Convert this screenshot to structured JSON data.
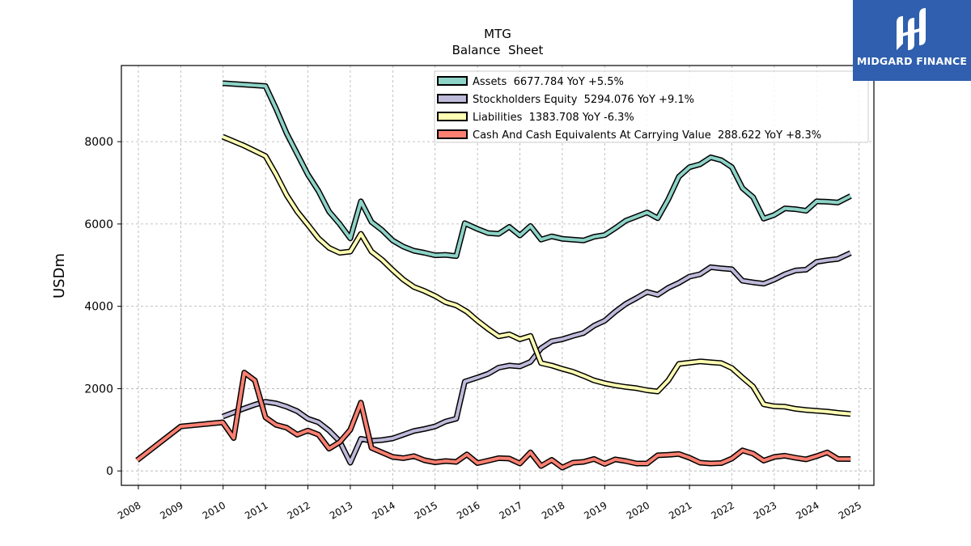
{
  "chart_data": {
    "type": "line",
    "title": "MTG",
    "subtitle": "Balance  Sheet",
    "ylabel": "USDm",
    "xlabel": "",
    "xlim": [
      2007.6,
      2025.35
    ],
    "ylim": [
      -350,
      9850
    ],
    "x_ticks": [
      2008,
      2009,
      2010,
      2011,
      2012,
      2013,
      2014,
      2015,
      2016,
      2017,
      2018,
      2019,
      2020,
      2021,
      2022,
      2023,
      2024,
      2025
    ],
    "y_ticks": [
      0,
      2000,
      4000,
      6000,
      8000
    ],
    "grid": true,
    "legend_position": "top-right",
    "series": [
      {
        "name": "Assets  6677.784 YoY +5.5%",
        "color": "#8dd3c7",
        "points": [
          [
            2009.99,
            9420
          ],
          [
            2011.0,
            9350
          ],
          [
            2011.25,
            8800
          ],
          [
            2011.5,
            8200
          ],
          [
            2011.75,
            7700
          ],
          [
            2012.0,
            7200
          ],
          [
            2012.25,
            6800
          ],
          [
            2012.5,
            6300
          ],
          [
            2012.75,
            6000
          ],
          [
            2013.0,
            5650
          ],
          [
            2013.25,
            6550
          ],
          [
            2013.5,
            6050
          ],
          [
            2013.75,
            5850
          ],
          [
            2014.0,
            5600
          ],
          [
            2014.25,
            5450
          ],
          [
            2014.5,
            5350
          ],
          [
            2014.75,
            5300
          ],
          [
            2015.0,
            5240
          ],
          [
            2015.25,
            5250
          ],
          [
            2015.5,
            5220
          ],
          [
            2015.7,
            6020
          ],
          [
            2016.0,
            5880
          ],
          [
            2016.25,
            5780
          ],
          [
            2016.5,
            5760
          ],
          [
            2016.75,
            5930
          ],
          [
            2017.0,
            5720
          ],
          [
            2017.25,
            5950
          ],
          [
            2017.5,
            5620
          ],
          [
            2017.75,
            5700
          ],
          [
            2018.0,
            5640
          ],
          [
            2018.25,
            5620
          ],
          [
            2018.5,
            5600
          ],
          [
            2018.75,
            5690
          ],
          [
            2019.0,
            5730
          ],
          [
            2019.25,
            5900
          ],
          [
            2019.5,
            6080
          ],
          [
            2019.75,
            6180
          ],
          [
            2020.0,
            6280
          ],
          [
            2020.25,
            6140
          ],
          [
            2020.5,
            6600
          ],
          [
            2020.75,
            7150
          ],
          [
            2021.0,
            7380
          ],
          [
            2021.25,
            7450
          ],
          [
            2021.5,
            7620
          ],
          [
            2021.75,
            7550
          ],
          [
            2022.0,
            7380
          ],
          [
            2022.25,
            6870
          ],
          [
            2022.5,
            6650
          ],
          [
            2022.75,
            6130
          ],
          [
            2023.0,
            6220
          ],
          [
            2023.25,
            6380
          ],
          [
            2023.5,
            6360
          ],
          [
            2023.75,
            6320
          ],
          [
            2024.0,
            6550
          ],
          [
            2024.25,
            6540
          ],
          [
            2024.5,
            6520
          ],
          [
            2024.8,
            6678
          ]
        ]
      },
      {
        "name": "Stockholders Equity  5294.076 YoY +9.1%",
        "color": "#bebada",
        "points": [
          [
            2009.99,
            1320
          ],
          [
            2010.25,
            1420
          ],
          [
            2010.5,
            1520
          ],
          [
            2010.75,
            1610
          ],
          [
            2011.0,
            1680
          ],
          [
            2011.25,
            1640
          ],
          [
            2011.5,
            1560
          ],
          [
            2011.75,
            1450
          ],
          [
            2012.0,
            1270
          ],
          [
            2012.25,
            1180
          ],
          [
            2012.5,
            980
          ],
          [
            2012.75,
            720
          ],
          [
            2013.0,
            200
          ],
          [
            2013.25,
            780
          ],
          [
            2013.5,
            730
          ],
          [
            2013.75,
            750
          ],
          [
            2014.0,
            790
          ],
          [
            2014.25,
            880
          ],
          [
            2014.5,
            970
          ],
          [
            2014.75,
            1020
          ],
          [
            2015.0,
            1080
          ],
          [
            2015.25,
            1200
          ],
          [
            2015.5,
            1270
          ],
          [
            2015.7,
            2170
          ],
          [
            2016.0,
            2270
          ],
          [
            2016.25,
            2360
          ],
          [
            2016.5,
            2510
          ],
          [
            2016.75,
            2560
          ],
          [
            2017.0,
            2540
          ],
          [
            2017.25,
            2650
          ],
          [
            2017.5,
            2980
          ],
          [
            2017.75,
            3150
          ],
          [
            2018.0,
            3200
          ],
          [
            2018.25,
            3280
          ],
          [
            2018.5,
            3350
          ],
          [
            2018.75,
            3530
          ],
          [
            2019.0,
            3650
          ],
          [
            2019.25,
            3870
          ],
          [
            2019.5,
            4060
          ],
          [
            2019.75,
            4200
          ],
          [
            2020.0,
            4350
          ],
          [
            2020.25,
            4280
          ],
          [
            2020.5,
            4450
          ],
          [
            2020.75,
            4570
          ],
          [
            2021.0,
            4720
          ],
          [
            2021.25,
            4780
          ],
          [
            2021.5,
            4950
          ],
          [
            2021.75,
            4920
          ],
          [
            2022.0,
            4900
          ],
          [
            2022.25,
            4620
          ],
          [
            2022.5,
            4580
          ],
          [
            2022.75,
            4550
          ],
          [
            2023.0,
            4650
          ],
          [
            2023.25,
            4780
          ],
          [
            2023.5,
            4870
          ],
          [
            2023.75,
            4890
          ],
          [
            2024.0,
            5080
          ],
          [
            2024.25,
            5120
          ],
          [
            2024.5,
            5150
          ],
          [
            2024.8,
            5294
          ]
        ]
      },
      {
        "name": "Liabilities  1383.708 YoY -6.3%",
        "color": "#ffffb3",
        "points": [
          [
            2009.99,
            8120
          ],
          [
            2010.5,
            7900
          ],
          [
            2011.0,
            7650
          ],
          [
            2011.25,
            7200
          ],
          [
            2011.5,
            6700
          ],
          [
            2011.75,
            6300
          ],
          [
            2012.0,
            5980
          ],
          [
            2012.25,
            5650
          ],
          [
            2012.5,
            5420
          ],
          [
            2012.75,
            5300
          ],
          [
            2013.0,
            5330
          ],
          [
            2013.25,
            5760
          ],
          [
            2013.5,
            5330
          ],
          [
            2013.75,
            5130
          ],
          [
            2014.0,
            4880
          ],
          [
            2014.25,
            4650
          ],
          [
            2014.5,
            4470
          ],
          [
            2014.75,
            4370
          ],
          [
            2015.0,
            4250
          ],
          [
            2015.25,
            4100
          ],
          [
            2015.5,
            4020
          ],
          [
            2015.75,
            3870
          ],
          [
            2016.0,
            3650
          ],
          [
            2016.25,
            3450
          ],
          [
            2016.5,
            3270
          ],
          [
            2016.75,
            3320
          ],
          [
            2017.0,
            3200
          ],
          [
            2017.25,
            3280
          ],
          [
            2017.5,
            2620
          ],
          [
            2017.75,
            2560
          ],
          [
            2018.0,
            2480
          ],
          [
            2018.25,
            2410
          ],
          [
            2018.5,
            2310
          ],
          [
            2018.75,
            2200
          ],
          [
            2019.0,
            2130
          ],
          [
            2019.25,
            2080
          ],
          [
            2019.5,
            2040
          ],
          [
            2019.75,
            2010
          ],
          [
            2020.0,
            1960
          ],
          [
            2020.25,
            1930
          ],
          [
            2020.5,
            2200
          ],
          [
            2020.75,
            2600
          ],
          [
            2021.0,
            2630
          ],
          [
            2021.25,
            2660
          ],
          [
            2021.5,
            2640
          ],
          [
            2021.75,
            2620
          ],
          [
            2022.0,
            2500
          ],
          [
            2022.25,
            2270
          ],
          [
            2022.5,
            2050
          ],
          [
            2022.75,
            1620
          ],
          [
            2023.0,
            1570
          ],
          [
            2023.25,
            1560
          ],
          [
            2023.5,
            1510
          ],
          [
            2023.75,
            1480
          ],
          [
            2024.0,
            1460
          ],
          [
            2024.25,
            1440
          ],
          [
            2024.5,
            1410
          ],
          [
            2024.8,
            1384
          ]
        ]
      },
      {
        "name": "Cash And Cash Equivalents At Carrying Value  288.622 YoY +8.3%",
        "color": "#fb8072",
        "points": [
          [
            2007.97,
            260
          ],
          [
            2009.0,
            1080
          ],
          [
            2009.99,
            1180
          ],
          [
            2010.25,
            800
          ],
          [
            2010.5,
            2390
          ],
          [
            2010.75,
            2200
          ],
          [
            2011.0,
            1300
          ],
          [
            2011.25,
            1120
          ],
          [
            2011.5,
            1050
          ],
          [
            2011.75,
            880
          ],
          [
            2012.0,
            980
          ],
          [
            2012.25,
            880
          ],
          [
            2012.5,
            540
          ],
          [
            2012.75,
            700
          ],
          [
            2013.0,
            1000
          ],
          [
            2013.25,
            1660
          ],
          [
            2013.5,
            560
          ],
          [
            2013.75,
            450
          ],
          [
            2014.0,
            340
          ],
          [
            2014.25,
            310
          ],
          [
            2014.5,
            360
          ],
          [
            2014.75,
            260
          ],
          [
            2015.0,
            210
          ],
          [
            2015.25,
            240
          ],
          [
            2015.5,
            220
          ],
          [
            2015.75,
            400
          ],
          [
            2016.0,
            190
          ],
          [
            2016.25,
            250
          ],
          [
            2016.5,
            310
          ],
          [
            2016.75,
            300
          ],
          [
            2017.0,
            180
          ],
          [
            2017.25,
            450
          ],
          [
            2017.5,
            120
          ],
          [
            2017.75,
            270
          ],
          [
            2018.0,
            80
          ],
          [
            2018.25,
            200
          ],
          [
            2018.5,
            220
          ],
          [
            2018.75,
            290
          ],
          [
            2019.0,
            170
          ],
          [
            2019.25,
            280
          ],
          [
            2019.5,
            240
          ],
          [
            2019.75,
            180
          ],
          [
            2020.0,
            180
          ],
          [
            2020.25,
            380
          ],
          [
            2020.5,
            390
          ],
          [
            2020.75,
            410
          ],
          [
            2021.0,
            320
          ],
          [
            2021.25,
            200
          ],
          [
            2021.5,
            180
          ],
          [
            2021.75,
            190
          ],
          [
            2022.0,
            300
          ],
          [
            2022.25,
            500
          ],
          [
            2022.5,
            420
          ],
          [
            2022.75,
            250
          ],
          [
            2023.0,
            340
          ],
          [
            2023.25,
            370
          ],
          [
            2023.5,
            320
          ],
          [
            2023.75,
            280
          ],
          [
            2024.0,
            360
          ],
          [
            2024.25,
            450
          ],
          [
            2024.5,
            290
          ],
          [
            2024.8,
            289
          ]
        ]
      }
    ]
  },
  "logo": {
    "text": "MIDGARD FINANCE",
    "icon": "midgard-logo-icon",
    "background": "#2f5fae"
  }
}
